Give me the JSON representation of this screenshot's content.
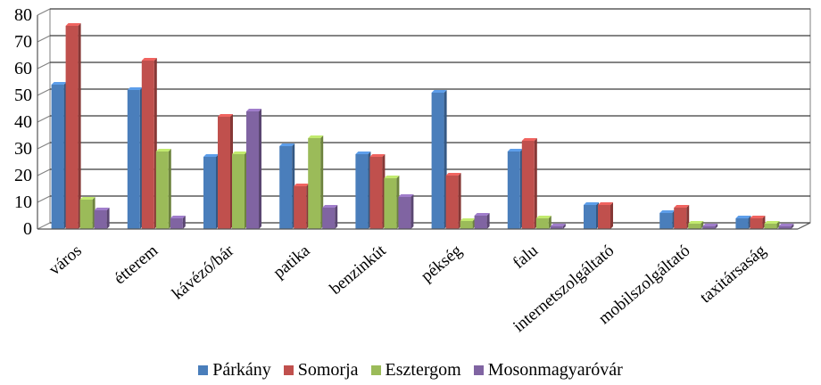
{
  "chart_data": {
    "type": "bar",
    "categories": [
      "város",
      "étterem",
      "kávézó/bár",
      "patika",
      "benzinkút",
      "pékség",
      "falu",
      "internetszolgáltató",
      "mobilszolgáltató",
      "taxitársaság"
    ],
    "series": [
      {
        "name": "Párkány",
        "color": "#4a7ebb",
        "values": [
          54,
          52,
          27,
          31,
          28,
          51,
          29,
          9,
          6,
          4
        ]
      },
      {
        "name": "Somorja",
        "color": "#c0504d",
        "values": [
          76,
          63,
          42,
          16,
          27,
          20,
          33,
          9,
          8,
          4
        ]
      },
      {
        "name": "Esztergom",
        "color": "#9bbb59",
        "values": [
          11,
          29,
          28,
          34,
          19,
          3,
          4,
          0,
          2,
          2
        ]
      },
      {
        "name": "Mosonmagyaróvár",
        "color": "#8064a2",
        "values": [
          7,
          4,
          44,
          8,
          12,
          5,
          1,
          0,
          1,
          1
        ]
      }
    ],
    "yticks": [
      "0",
      "10",
      "20",
      "30",
      "40",
      "50",
      "60",
      "70",
      "80"
    ],
    "ylim": [
      0,
      80
    ],
    "grid": true,
    "legend_position": "bottom",
    "title": "",
    "xlabel": "",
    "ylabel": ""
  }
}
